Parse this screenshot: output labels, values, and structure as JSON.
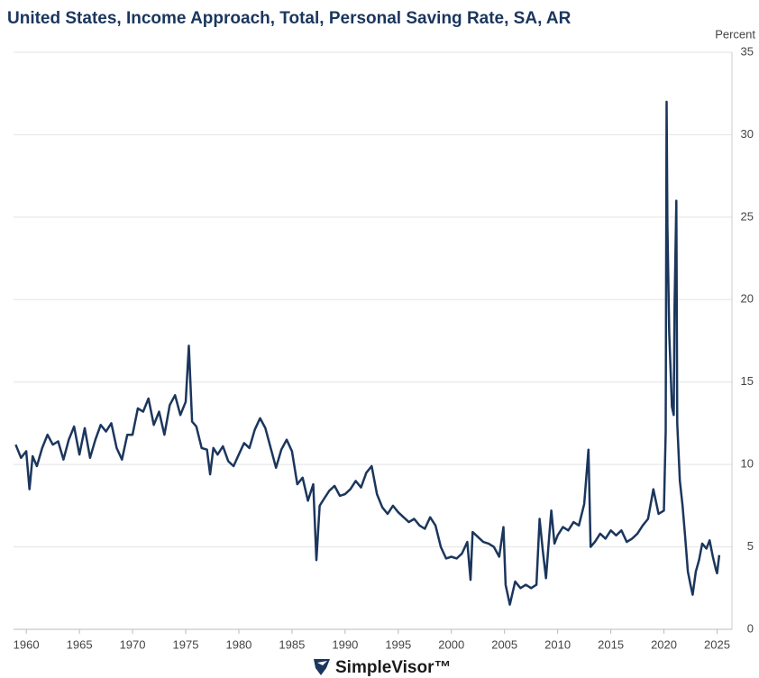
{
  "chart_data": {
    "type": "line",
    "title": "United States, Income Approach, Total, Personal Saving Rate, SA, AR",
    "y_axis_label": "Percent",
    "color": "#1b365d",
    "grid": true,
    "xlim": [
      1958.8,
      2026.4
    ],
    "xticks": [
      1960,
      1965,
      1970,
      1975,
      1980,
      1985,
      1990,
      1995,
      2000,
      2005,
      2010,
      2015,
      2020,
      2025
    ],
    "ylim": [
      0,
      35
    ],
    "yticks": [
      0,
      5,
      10,
      15,
      20,
      25,
      30,
      35
    ],
    "x": [
      1959.0,
      1959.5,
      1960.0,
      1960.3,
      1960.6,
      1961.0,
      1961.5,
      1962.0,
      1962.5,
      1963.0,
      1963.5,
      1964.0,
      1964.5,
      1965.0,
      1965.5,
      1966.0,
      1966.5,
      1967.0,
      1967.5,
      1968.0,
      1968.5,
      1969.0,
      1969.5,
      1970.0,
      1970.5,
      1971.0,
      1971.5,
      1972.0,
      1972.5,
      1973.0,
      1973.5,
      1974.0,
      1974.5,
      1975.0,
      1975.3,
      1975.6,
      1976.0,
      1976.5,
      1977.0,
      1977.3,
      1977.6,
      1978.0,
      1978.5,
      1979.0,
      1979.5,
      1980.0,
      1980.5,
      1981.0,
      1981.5,
      1982.0,
      1982.5,
      1983.0,
      1983.5,
      1984.0,
      1984.5,
      1985.0,
      1985.5,
      1986.0,
      1986.5,
      1987.0,
      1987.3,
      1987.6,
      1988.0,
      1988.5,
      1989.0,
      1989.5,
      1990.0,
      1990.5,
      1991.0,
      1991.5,
      1992.0,
      1992.5,
      1993.0,
      1993.5,
      1994.0,
      1994.5,
      1995.0,
      1995.5,
      1996.0,
      1996.5,
      1997.0,
      1997.5,
      1998.0,
      1998.5,
      1999.0,
      1999.5,
      2000.0,
      2000.5,
      2001.0,
      2001.5,
      2001.8,
      2002.0,
      2002.5,
      2003.0,
      2003.5,
      2004.0,
      2004.5,
      2004.9,
      2005.1,
      2005.5,
      2006.0,
      2006.5,
      2007.0,
      2007.5,
      2008.0,
      2008.3,
      2008.6,
      2008.9,
      2009.2,
      2009.4,
      2009.7,
      2010.0,
      2010.5,
      2011.0,
      2011.5,
      2012.0,
      2012.5,
      2012.9,
      2013.1,
      2013.5,
      2014.0,
      2014.5,
      2015.0,
      2015.5,
      2016.0,
      2016.5,
      2017.0,
      2017.5,
      2018.0,
      2018.5,
      2019.0,
      2019.5,
      2020.0,
      2020.17,
      2020.25,
      2020.33,
      2020.5,
      2020.75,
      2020.92,
      2021.0,
      2021.17,
      2021.25,
      2021.5,
      2021.75,
      2022.0,
      2022.25,
      2022.5,
      2022.7,
      2023.0,
      2023.3,
      2023.6,
      2024.0,
      2024.3,
      2024.6,
      2024.9,
      2025.0,
      2025.2
    ],
    "values": [
      11.2,
      10.4,
      10.8,
      8.5,
      10.5,
      9.9,
      11.0,
      11.8,
      11.2,
      11.4,
      10.3,
      11.5,
      12.3,
      10.6,
      12.2,
      10.4,
      11.5,
      12.4,
      12.0,
      12.5,
      11.0,
      10.3,
      11.8,
      11.8,
      13.4,
      13.2,
      14.0,
      12.4,
      13.2,
      11.8,
      13.6,
      14.2,
      13.0,
      13.8,
      17.2,
      12.6,
      12.3,
      11.0,
      10.9,
      9.4,
      11.0,
      10.6,
      11.1,
      10.2,
      9.9,
      10.6,
      11.3,
      11.0,
      12.1,
      12.8,
      12.2,
      11.0,
      9.8,
      10.9,
      11.5,
      10.8,
      8.8,
      9.2,
      7.8,
      8.8,
      4.2,
      7.5,
      7.9,
      8.4,
      8.7,
      8.1,
      8.2,
      8.5,
      9.0,
      8.6,
      9.5,
      9.9,
      8.2,
      7.4,
      7.0,
      7.5,
      7.1,
      6.8,
      6.5,
      6.7,
      6.3,
      6.1,
      6.8,
      6.3,
      5.0,
      4.3,
      4.4,
      4.3,
      4.6,
      5.3,
      3.0,
      5.9,
      5.6,
      5.3,
      5.2,
      5.0,
      4.4,
      6.2,
      2.7,
      1.5,
      2.9,
      2.5,
      2.7,
      2.5,
      2.7,
      6.7,
      4.8,
      3.1,
      5.6,
      7.2,
      5.2,
      5.7,
      6.2,
      6.0,
      6.5,
      6.3,
      7.6,
      10.9,
      5.0,
      5.3,
      5.8,
      5.5,
      6.0,
      5.7,
      6.0,
      5.3,
      5.5,
      5.8,
      6.3,
      6.7,
      8.5,
      7.0,
      7.2,
      12.0,
      32.0,
      24.5,
      18.0,
      13.5,
      13.0,
      19.5,
      26.0,
      12.5,
      9.0,
      7.5,
      5.6,
      3.5,
      2.7,
      2.1,
      3.5,
      4.2,
      5.2,
      4.9,
      5.4,
      4.4,
      3.6,
      3.4,
      4.5
    ]
  },
  "footer": {
    "brand": "SimpleVisor™"
  }
}
